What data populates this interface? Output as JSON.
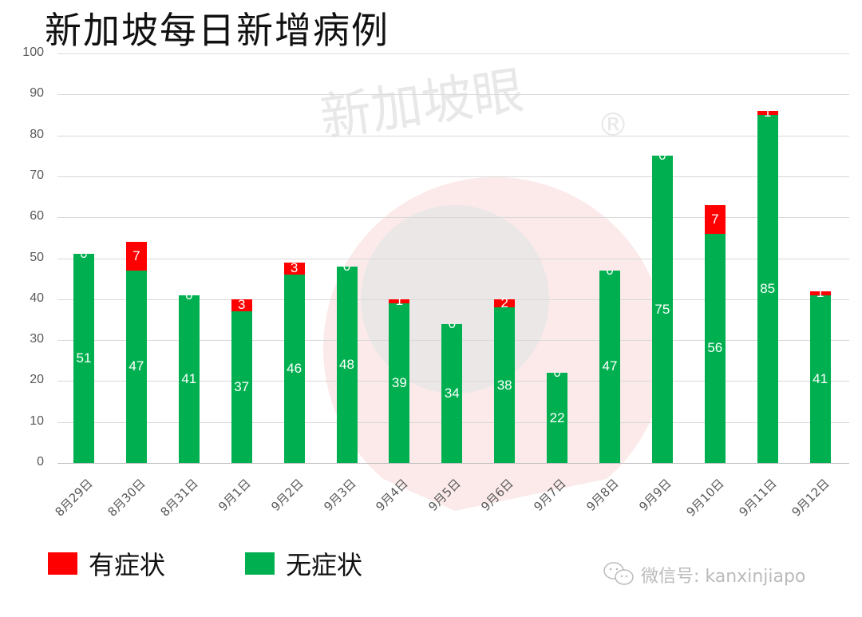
{
  "chart_data": {
    "type": "bar",
    "stacked": true,
    "title": "新加坡每日新增病例",
    "xlabel": "",
    "ylabel": "",
    "ylim": [
      0,
      100
    ],
    "yticks": [
      0,
      10,
      20,
      30,
      40,
      50,
      60,
      70,
      80,
      90,
      100
    ],
    "grid": true,
    "legend_position": "bottom-left",
    "categories": [
      "8月29日",
      "8月30日",
      "8月31日",
      "9月1日",
      "9月2日",
      "9月3日",
      "9月4日",
      "9月5日",
      "9月6日",
      "9月7日",
      "9月8日",
      "9月9日",
      "9月10日",
      "9月11日",
      "9月12日"
    ],
    "series": [
      {
        "name": "无症状",
        "color": "#00b050",
        "values": [
          51,
          47,
          41,
          37,
          46,
          48,
          39,
          34,
          38,
          22,
          47,
          75,
          56,
          85,
          41
        ]
      },
      {
        "name": "有症状",
        "color": "#ff0000",
        "values": [
          0,
          7,
          0,
          3,
          3,
          0,
          1,
          0,
          2,
          0,
          0,
          0,
          7,
          1,
          1
        ]
      }
    ],
    "legend": [
      {
        "label": "有症状",
        "color": "#ff0000"
      },
      {
        "label": "无症状",
        "color": "#00b050"
      }
    ]
  },
  "watermark": {
    "text": "新加坡眼",
    "mark": "®",
    "wechat_label": "微信号: kanxinjiapo"
  }
}
